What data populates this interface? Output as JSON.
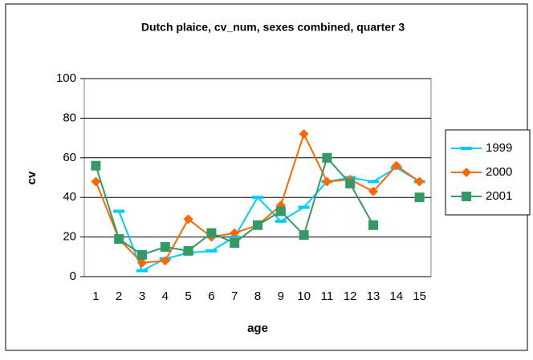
{
  "chart_data": {
    "type": "line",
    "title": "Dutch plaice, cv_num, sexes combined, quarter 3",
    "x_label": "age",
    "y_label": "cv",
    "categories": [
      "1",
      "2",
      "3",
      "4",
      "5",
      "6",
      "7",
      "8",
      "9",
      "10",
      "11",
      "12",
      "13",
      "14",
      "15"
    ],
    "series": [
      {
        "name": "1999",
        "color": "#00ccff",
        "marker": "dash",
        "values": [
          null,
          33,
          3,
          9,
          12,
          13,
          20,
          40,
          28,
          35,
          48,
          50,
          48,
          55,
          48
        ]
      },
      {
        "name": "2000",
        "color": "#ff6600",
        "marker": "diamond",
        "values": [
          48,
          19,
          7,
          8,
          29,
          20,
          22,
          26,
          36,
          72,
          48,
          49,
          43,
          56,
          48
        ]
      },
      {
        "name": "2001",
        "color": "#339966",
        "marker": "square",
        "values": [
          56,
          19,
          11,
          15,
          13,
          22,
          17,
          26,
          33,
          21,
          60,
          47,
          26,
          null,
          40
        ]
      }
    ],
    "ylim": [
      0,
      100
    ],
    "yticks": [
      0,
      20,
      40,
      60,
      80,
      100
    ],
    "grid": true,
    "legend": "right"
  }
}
